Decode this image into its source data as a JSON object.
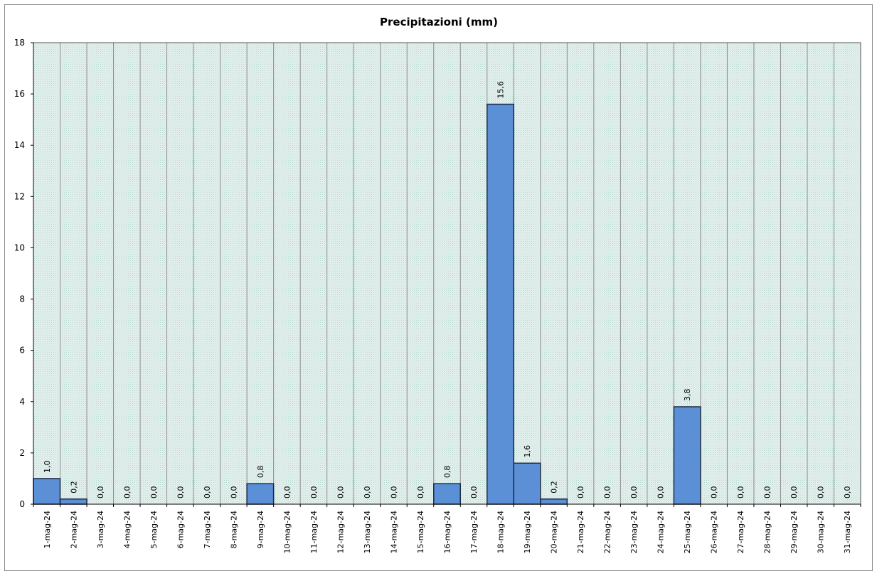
{
  "chart_data": {
    "type": "bar",
    "title": "Precipitazioni  (mm)",
    "xlabel": "",
    "ylabel": "",
    "ylim": [
      0,
      18
    ],
    "yticks": [
      "0",
      "2",
      "4",
      "6",
      "8",
      "10",
      "12",
      "14",
      "16",
      "18"
    ],
    "grid": "vertical",
    "categories": [
      "1-mag-24",
      "2-mag-24",
      "3-mag-24",
      "4-mag-24",
      "5-mag-24",
      "6-mag-24",
      "7-mag-24",
      "8-mag-24",
      "9-mag-24",
      "10-mag-24",
      "11-mag-24",
      "12-mag-24",
      "13-mag-24",
      "14-mag-24",
      "15-mag-24",
      "16-mag-24",
      "17-mag-24",
      "18-mag-24",
      "19-mag-24",
      "20-mag-24",
      "21-mag-24",
      "22-mag-24",
      "23-mag-24",
      "24-mag-24",
      "25-mag-24",
      "26-mag-24",
      "27-mag-24",
      "28-mag-24",
      "29-mag-24",
      "30-mag-24",
      "31-mag-24"
    ],
    "values": [
      1.0,
      0.2,
      0.0,
      0.0,
      0.0,
      0.0,
      0.0,
      0.0,
      0.8,
      0.0,
      0.0,
      0.0,
      0.0,
      0.0,
      0.0,
      0.8,
      0.0,
      15.6,
      1.6,
      0.2,
      0.0,
      0.0,
      0.0,
      0.0,
      3.8,
      0.0,
      0.0,
      0.0,
      0.0,
      0.0,
      0.0
    ],
    "value_labels": [
      "1,0",
      "0,2",
      "0,0",
      "0,0",
      "0,0",
      "0,0",
      "0,0",
      "0,0",
      "0,8",
      "0,0",
      "0,0",
      "0,0",
      "0,0",
      "0,0",
      "0,0",
      "0,8",
      "0,0",
      "15,6",
      "1,6",
      "0,2",
      "0,0",
      "0,0",
      "0,0",
      "0,0",
      "3,8",
      "0,0",
      "0,0",
      "0,0",
      "0,0",
      "0,0",
      "0,0"
    ],
    "colors": {
      "bar_fill": "#5b8fd6",
      "bar_stroke": "#1a2a44",
      "plot_background": "#d9ece8",
      "grid_line": "#8a8a8a"
    }
  }
}
